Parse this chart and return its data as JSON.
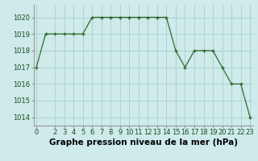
{
  "x": [
    0,
    1,
    2,
    3,
    4,
    5,
    6,
    7,
    8,
    9,
    10,
    11,
    12,
    13,
    14,
    15,
    16,
    17,
    18,
    19,
    20,
    21,
    22,
    23
  ],
  "y": [
    1017,
    1019,
    1019,
    1019,
    1019,
    1019,
    1020,
    1020,
    1020,
    1020,
    1020,
    1020,
    1020,
    1020,
    1020,
    1018,
    1017,
    1018,
    1018,
    1018,
    1017,
    1016,
    1016,
    1014
  ],
  "line_color": "#2d6a2d",
  "marker_color": "#2d6a2d",
  "bg_color": "#ceeaea",
  "grid_color": "#aacece",
  "xlabel": "Graphe pression niveau de la mer (hPa)",
  "ylim_min": 1013.5,
  "ylim_max": 1020.75,
  "yticks": [
    1014,
    1015,
    1016,
    1017,
    1018,
    1019,
    1020
  ],
  "xtick_labels": [
    "0",
    "2",
    "3",
    "4",
    "5",
    "6",
    "7",
    "8",
    "9",
    "10",
    "11",
    "12",
    "13",
    "14",
    "15",
    "16",
    "17",
    "18",
    "19",
    "20",
    "21",
    "22",
    "23"
  ],
  "xtick_positions": [
    0,
    2,
    3,
    4,
    5,
    6,
    7,
    8,
    9,
    10,
    11,
    12,
    13,
    14,
    15,
    16,
    17,
    18,
    19,
    20,
    21,
    22,
    23
  ],
  "xlabel_fontsize": 7.5,
  "tick_fontsize": 6.0
}
